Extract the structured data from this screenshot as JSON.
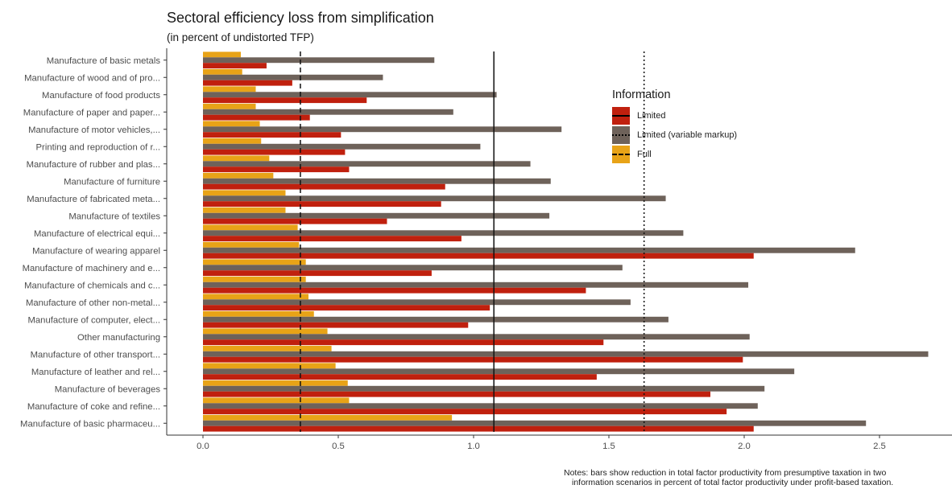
{
  "chart_data": {
    "type": "bar",
    "orientation": "horizontal",
    "title": "Sectoral efficiency loss from simplification",
    "subtitle": "(in percent of undistorted TFP)",
    "xlabel": "",
    "ylabel": "",
    "xlim": [
      -0.13,
      2.77
    ],
    "x_ticks": [
      0.0,
      0.5,
      1.0,
      1.5,
      2.0,
      2.5
    ],
    "x_tick_labels": [
      "0.0",
      "0.5",
      "1.0",
      "1.5",
      "2.0",
      "2.5"
    ],
    "grid": false,
    "legend_position": "right",
    "legend_title": "Information",
    "categories": [
      "Manufacture of basic metals",
      "Manufacture of wood and of pro...",
      "Manufacture of food products",
      "Manufacture of paper and paper...",
      "Manufacture of motor vehicles,...",
      "Printing and reproduction of r...",
      "Manufacture of rubber and plas...",
      "Manufacture of furniture",
      "Manufacture of fabricated meta...",
      "Manufacture of textiles",
      "Manufacture of electrical equi...",
      "Manufacture of wearing apparel",
      "Manufacture of machinery and e...",
      "Manufacture of chemicals and c...",
      "Manufacture of other non-metal...",
      "Manufacture of computer, elect...",
      "Other manufacturing",
      "Manufacture of other transport...",
      "Manufacture of leather and rel...",
      "Manufacture of beverages",
      "Manufacture of coke and refine...",
      "Manufacture of basic pharmaceu..."
    ],
    "series": [
      {
        "name": "Full",
        "color": "#E8A317",
        "line_style": "dashed",
        "values": [
          0.14,
          0.145,
          0.195,
          0.195,
          0.21,
          0.215,
          0.245,
          0.26,
          0.305,
          0.305,
          0.35,
          0.355,
          0.38,
          0.38,
          0.39,
          0.41,
          0.46,
          0.475,
          0.49,
          0.535,
          0.54,
          0.92
        ]
      },
      {
        "name": "Limited (variable markup)",
        "color": "#6E625A",
        "line_style": "dotted",
        "values": [
          0.855,
          0.665,
          1.085,
          0.925,
          1.325,
          1.025,
          1.21,
          1.285,
          1.71,
          1.28,
          1.775,
          2.41,
          1.55,
          2.015,
          1.58,
          1.72,
          2.02,
          2.68,
          2.185,
          2.075,
          2.05,
          2.45
        ]
      },
      {
        "name": "Limited",
        "color": "#C0200E",
        "line_style": "solid",
        "values": [
          0.235,
          0.33,
          0.605,
          0.395,
          0.51,
          0.525,
          0.54,
          0.895,
          0.88,
          0.68,
          0.955,
          2.035,
          0.845,
          1.415,
          1.06,
          0.98,
          1.48,
          1.995,
          1.455,
          1.875,
          1.935,
          2.035
        ]
      }
    ],
    "reference_lines": [
      {
        "series": "Full",
        "value": 0.36,
        "style": "dashed"
      },
      {
        "series": "Limited",
        "value": 1.075,
        "style": "solid"
      },
      {
        "series": "Limited (variable markup)",
        "value": 1.63,
        "style": "dotted"
      }
    ]
  },
  "legend": {
    "title": "Information",
    "items": [
      {
        "label": "Limited",
        "color": "#C0200E",
        "line": "solid"
      },
      {
        "label": "Limited (variable markup)",
        "color": "#6E625A",
        "line": "dotted"
      },
      {
        "label": "Full",
        "color": "#E8A317",
        "line": "dashed"
      }
    ]
  },
  "notes": {
    "line1": "Notes: bars show reduction in total factor productivity from presumptive taxation in two",
    "line2": "information scenarios in percent of total factor productivity under profit-based taxation."
  }
}
